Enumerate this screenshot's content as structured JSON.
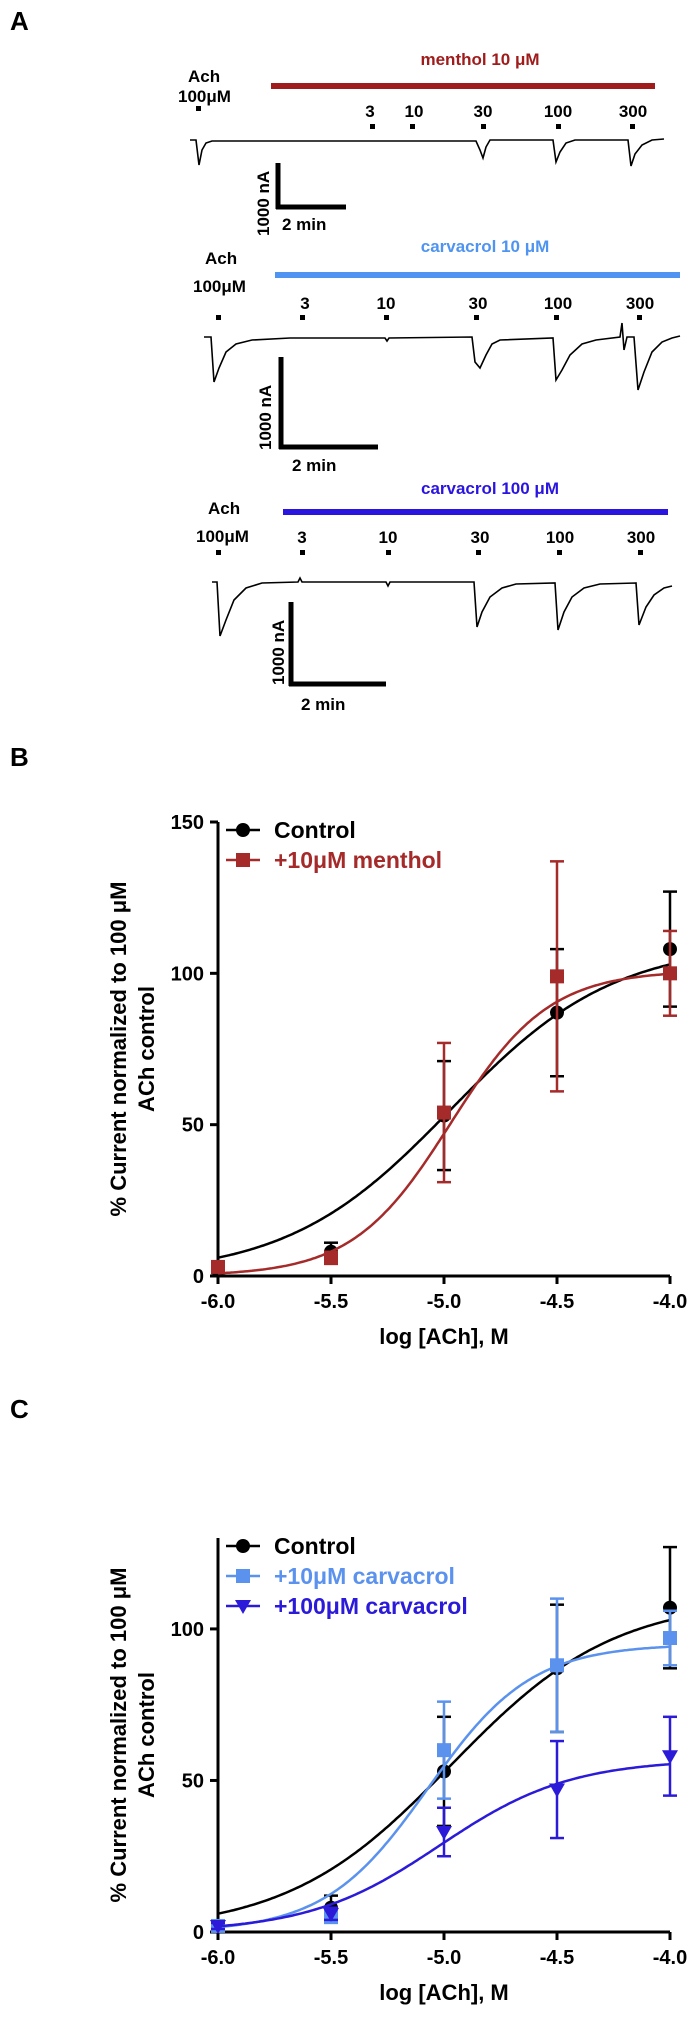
{
  "panel_labels": {
    "a": "A",
    "b": "B",
    "c": "C"
  },
  "traces": [
    {
      "drug_label": "menthol 10 μM",
      "drug_color": "#a01c1c",
      "ach_label_top": "Ach",
      "ach_label_bottom": "100μM",
      "conc_labels": [
        "3",
        "10",
        "30",
        "100",
        "300"
      ],
      "scale_current": "1000 nA",
      "scale_time": "2 min"
    },
    {
      "drug_label": "carvacrol 10 μM",
      "drug_color": "#4f94f0",
      "ach_label_top": "Ach",
      "ach_label_bottom": "100μM",
      "conc_labels": [
        "3",
        "10",
        "30",
        "100",
        "300"
      ],
      "scale_current": "1000 nA",
      "scale_time": "2 min"
    },
    {
      "drug_label": "carvacrol 100 μM",
      "drug_color": "#2a14e0",
      "ach_label_top": "Ach",
      "ach_label_bottom": "100μM",
      "conc_labels": [
        "3",
        "10",
        "30",
        "100",
        "300"
      ],
      "scale_current": "1000 nA",
      "scale_time": "2 min"
    }
  ],
  "chart_data": [
    {
      "type": "scatter",
      "panel": "B",
      "xlabel": "log [ACh], M",
      "ylabel_line1": "% Current normalized to 100 μM",
      "ylabel_line2": "ACh control",
      "xlim": [
        -6.0,
        -4.0
      ],
      "ylim": [
        0,
        150
      ],
      "xticks": [
        -6.0,
        -5.5,
        -5.0,
        -4.5,
        -4.0
      ],
      "xtick_labels": [
        "-6.0",
        "-5.5",
        "-5.0",
        "-4.5",
        "-4.0"
      ],
      "yticks": [
        0,
        50,
        100,
        150
      ],
      "ytick_labels": [
        "0",
        "50",
        "100",
        "150"
      ],
      "legend_position": "top-left",
      "series": [
        {
          "name": "Control",
          "color": "#000000",
          "marker": "circle",
          "x": [
            -6.0,
            -5.5,
            -5.0,
            -4.5,
            -4.0
          ],
          "y": [
            2,
            8,
            53,
            87,
            108
          ],
          "err": [
            1,
            3,
            18,
            21,
            19
          ],
          "fit": {
            "bottom": 0,
            "top": 110,
            "logEC50": -4.97,
            "hill": 1.2
          }
        },
        {
          "name": "+10μM  menthol",
          "color": "#a52a2a",
          "marker": "square",
          "x": [
            -6.0,
            -5.5,
            -5.0,
            -4.5,
            -4.0
          ],
          "y": [
            3,
            6,
            54,
            99,
            100
          ],
          "err": [
            1,
            2,
            23,
            38,
            14
          ],
          "fit": {
            "bottom": 0,
            "top": 101,
            "logEC50": -4.97,
            "hill": 2.0
          }
        }
      ]
    },
    {
      "type": "scatter",
      "panel": "C",
      "xlabel": "log [ACh], M",
      "ylabel_line1": "% Current normalized to 100 μM",
      "ylabel_line2": "ACh control",
      "xlim": [
        -6.0,
        -4.0
      ],
      "ylim": [
        0,
        130
      ],
      "xticks": [
        -6.0,
        -5.5,
        -5.0,
        -4.5,
        -4.0
      ],
      "xtick_labels": [
        "-6.0",
        "-5.5",
        "-5.0",
        "-4.5",
        "-4.0"
      ],
      "yticks": [
        0,
        50,
        100
      ],
      "ytick_labels": [
        "0",
        "50",
        "100"
      ],
      "legend_position": "top-left",
      "series": [
        {
          "name": "Control",
          "color": "#000000",
          "marker": "circle",
          "x": [
            -6.0,
            -5.5,
            -5.0,
            -4.5,
            -4.0
          ],
          "y": [
            2,
            8,
            53,
            87,
            107
          ],
          "err": [
            1,
            4,
            18,
            21,
            20
          ],
          "fit": {
            "bottom": 0,
            "top": 110,
            "logEC50": -4.97,
            "hill": 1.2
          }
        },
        {
          "name": "+10μM  carvacrol",
          "color": "#5b92ee",
          "marker": "square",
          "x": [
            -6.0,
            -5.5,
            -5.0,
            -4.5,
            -4.0
          ],
          "y": [
            2,
            5,
            60,
            88,
            97
          ],
          "err": [
            1,
            2,
            16,
            22,
            9
          ],
          "fit": {
            "bottom": 0,
            "top": 95,
            "logEC50": -5.07,
            "hill": 1.9
          }
        },
        {
          "name": "+100μM  carvacrol",
          "color": "#2b1bd9",
          "marker": "triangle-down",
          "x": [
            -6.0,
            -5.5,
            -5.0,
            -4.5,
            -4.0
          ],
          "y": [
            2,
            6,
            33,
            47,
            58
          ],
          "err": [
            1,
            2,
            8,
            16,
            13
          ],
          "fit": {
            "bottom": 0,
            "top": 57,
            "logEC50": -5.02,
            "hill": 1.5
          }
        }
      ]
    }
  ]
}
